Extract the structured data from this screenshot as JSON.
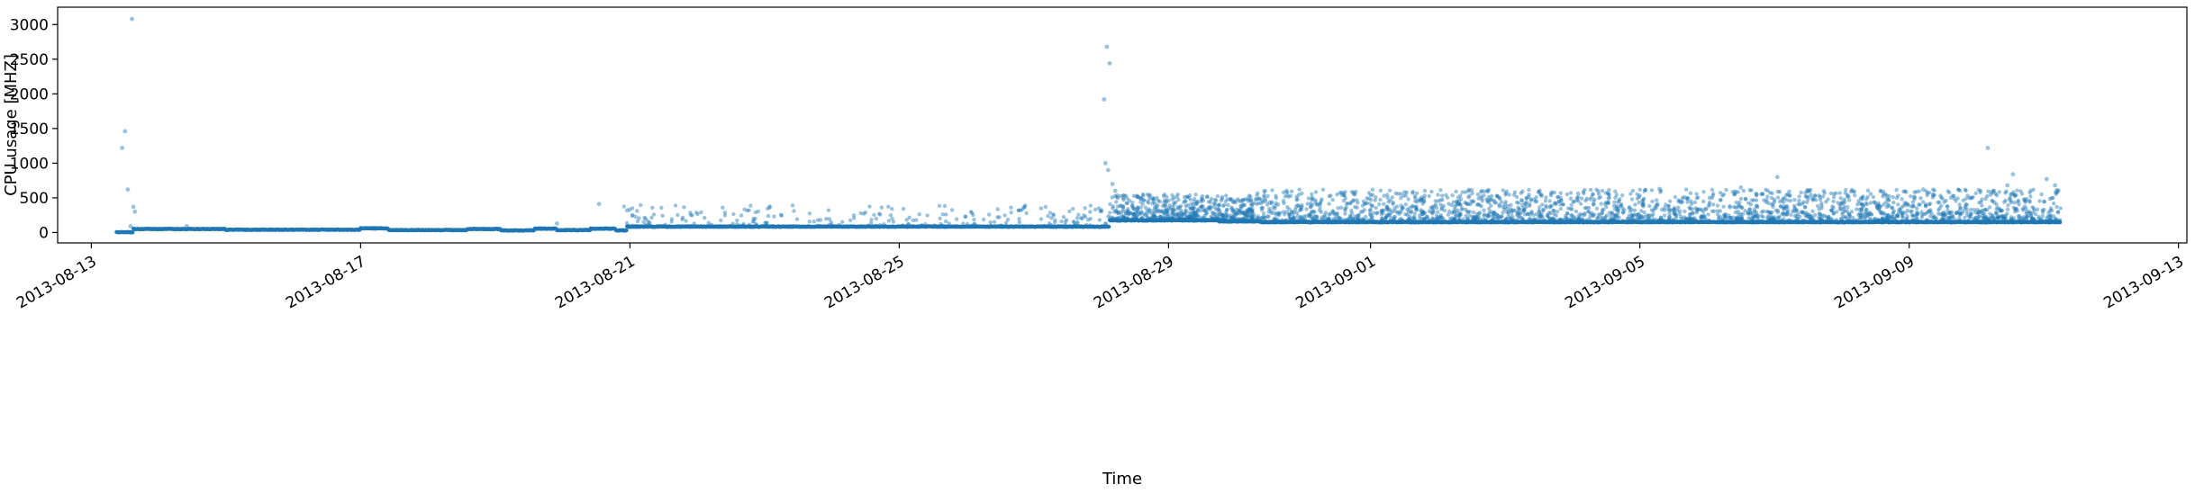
{
  "chart_data": {
    "type": "scatter",
    "title": "",
    "xlabel": "Time",
    "ylabel": "CPU usage [MHZ]",
    "x_axis": "date",
    "xlim": [
      "2013-08-12T12:00",
      "2013-09-13T03:00"
    ],
    "ylim": [
      -150,
      3250
    ],
    "y_ticks": [
      0,
      500,
      1000,
      1500,
      2000,
      2500,
      3000
    ],
    "x_ticks": [
      "2013-08-13",
      "2013-08-17",
      "2013-08-21",
      "2013-08-25",
      "2013-08-29",
      "2013-09-01",
      "2013-09-05",
      "2013-09-09",
      "2013-09-13"
    ],
    "grid": false,
    "legend": "none",
    "point_color": "#1f77b4",
    "point_opacity": 0.45,
    "baseline_segments": [
      {
        "start": "2013-08-13T09:00",
        "end": "2013-08-13T15:00",
        "value": 5
      },
      {
        "start": "2013-08-13T15:00",
        "end": "2013-08-15T00:00",
        "value": 50
      },
      {
        "start": "2013-08-15T00:00",
        "end": "2013-08-17T00:00",
        "value": 40
      },
      {
        "start": "2013-08-17T00:00",
        "end": "2013-08-17T10:00",
        "value": 60
      },
      {
        "start": "2013-08-17T10:00",
        "end": "2013-08-18T14:00",
        "value": 35
      },
      {
        "start": "2013-08-18T14:00",
        "end": "2013-08-19T02:00",
        "value": 50
      },
      {
        "start": "2013-08-19T02:00",
        "end": "2013-08-19T14:00",
        "value": 30
      },
      {
        "start": "2013-08-19T14:00",
        "end": "2013-08-19T22:00",
        "value": 55
      },
      {
        "start": "2013-08-19T22:00",
        "end": "2013-08-20T10:00",
        "value": 35
      },
      {
        "start": "2013-08-20T10:00",
        "end": "2013-08-20T19:00",
        "value": 55
      },
      {
        "start": "2013-08-20T19:00",
        "end": "2013-08-20T23:00",
        "value": 30
      },
      {
        "start": "2013-08-20T23:00",
        "end": "2013-08-28T03:00",
        "value": 85
      },
      {
        "start": "2013-08-28T03:00",
        "end": "2013-08-29T18:00",
        "value": 175
      },
      {
        "start": "2013-08-29T18:00",
        "end": "2013-08-30T09:00",
        "value": 160
      },
      {
        "start": "2013-08-30T09:00",
        "end": "2013-09-11T06:00",
        "value": 150
      }
    ],
    "scatter_regions": [
      {
        "start": "2013-08-20T20:00",
        "end": "2013-08-28T03:00",
        "density": 1.6,
        "base": 85,
        "max": 400
      },
      {
        "start": "2013-08-28T03:00",
        "end": "2013-08-30T06:00",
        "density": 12,
        "base": 175,
        "max": 550
      },
      {
        "start": "2013-08-30T06:00",
        "end": "2013-09-11T06:00",
        "density": 9,
        "base": 150,
        "max": 620
      }
    ],
    "outliers": [
      {
        "x": "2013-08-13T14:30",
        "y": 3080
      },
      {
        "x": "2013-08-13T12:00",
        "y": 1460
      },
      {
        "x": "2013-08-13T11:00",
        "y": 1220
      },
      {
        "x": "2013-08-13T13:00",
        "y": 620
      },
      {
        "x": "2013-08-13T15:00",
        "y": 370
      },
      {
        "x": "2013-08-13T15:30",
        "y": 300
      },
      {
        "x": "2013-08-13T14:00",
        "y": 90
      },
      {
        "x": "2013-08-14T10:00",
        "y": 90
      },
      {
        "x": "2013-08-19T22:00",
        "y": 130
      },
      {
        "x": "2013-08-20T13:00",
        "y": 410
      },
      {
        "x": "2013-08-20T23:00",
        "y": 320
      },
      {
        "x": "2013-08-28T02:00",
        "y": 2680
      },
      {
        "x": "2013-08-28T03:00",
        "y": 2440
      },
      {
        "x": "2013-08-28T01:00",
        "y": 1920
      },
      {
        "x": "2013-08-28T01:30",
        "y": 1000
      },
      {
        "x": "2013-08-28T02:30",
        "y": 900
      },
      {
        "x": "2013-08-28T04:00",
        "y": 700
      },
      {
        "x": "2013-08-28T05:00",
        "y": 600
      },
      {
        "x": "2013-08-29T12:00",
        "y": 520
      },
      {
        "x": "2013-08-30T18:00",
        "y": 600
      },
      {
        "x": "2013-09-02T12:00",
        "y": 610
      },
      {
        "x": "2013-09-03T12:00",
        "y": 580
      },
      {
        "x": "2013-09-04T02:00",
        "y": 560
      },
      {
        "x": "2013-09-05T07:00",
        "y": 630
      },
      {
        "x": "2013-09-06T12:00",
        "y": 650
      },
      {
        "x": "2013-09-07T01:00",
        "y": 800
      },
      {
        "x": "2013-09-09T05:00",
        "y": 620
      },
      {
        "x": "2013-09-10T04:00",
        "y": 1220
      },
      {
        "x": "2013-09-10T13:00",
        "y": 840
      },
      {
        "x": "2013-09-10T11:00",
        "y": 680
      },
      {
        "x": "2013-09-11T01:00",
        "y": 770
      },
      {
        "x": "2013-09-11T04:00",
        "y": 680
      }
    ]
  }
}
